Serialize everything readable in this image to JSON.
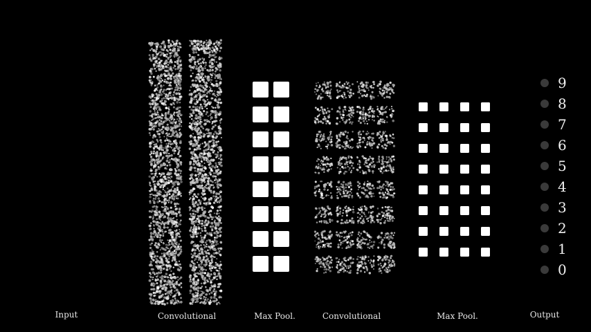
{
  "layers": [
    {
      "id": "input",
      "label": "Input"
    },
    {
      "id": "conv1",
      "label": "Convolutional"
    },
    {
      "id": "pool1",
      "label": "Max Pool."
    },
    {
      "id": "conv2",
      "label": "Convolutional"
    },
    {
      "id": "pool2",
      "label": "Max Pool."
    },
    {
      "id": "output",
      "label": "Output"
    }
  ],
  "output_digits": [
    "9",
    "8",
    "7",
    "6",
    "5",
    "4",
    "3",
    "2",
    "1",
    "0"
  ],
  "colors": {
    "background": "#000000",
    "feature_map": "#ffffff",
    "noise_dot": "#d0d0d0",
    "output_node": "#3a3a3a",
    "label": "#e6e6e6"
  }
}
